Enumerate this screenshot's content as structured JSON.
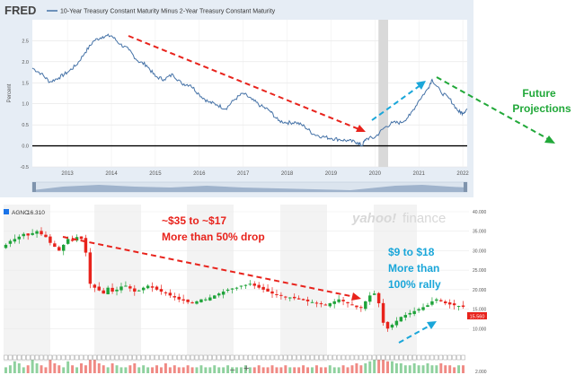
{
  "fred": {
    "logo": "FRED",
    "series_title": "10-Year Treasury Constant Maturity Minus 2-Year Treasury Constant Maturity",
    "ylabel": "Percent",
    "colors": {
      "line": "#4572A7",
      "zero": "#000000",
      "panel": "#e6edf5",
      "recession": "#d9d9d9"
    }
  },
  "yahoo": {
    "ticker": "AGNC",
    "price": "16.310",
    "last_label": "15.560",
    "watermark_brand": "yahoo!",
    "watermark_suffix": "finance",
    "volume_label": "2.000",
    "zoom_minus": "–",
    "zoom_plus": "+"
  },
  "annotations": {
    "future_1": "Future",
    "future_2": "Projections",
    "drop_1": "~$35 to ~$17",
    "drop_2": "More than 50% drop",
    "rally_1": "$9 to $18",
    "rally_2": "More than",
    "rally_3": "100% rally"
  },
  "chart_data": [
    {
      "type": "line",
      "title": "10-Year Treasury Constant Maturity Minus 2-Year Treasury Constant Maturity",
      "ylabel": "Percent",
      "xlabel": "",
      "x_ticks": [
        "2013",
        "2014",
        "2015",
        "2016",
        "2017",
        "2018",
        "2019",
        "2020",
        "2021",
        "2022"
      ],
      "y_ticks": [
        -0.5,
        0.0,
        0.5,
        1.0,
        1.5,
        2.0,
        2.5
      ],
      "xlim": [
        2012.2,
        2022.1
      ],
      "ylim": [
        -0.5,
        3.0
      ],
      "grid": true,
      "recession_band": [
        2020.08,
        2020.3
      ],
      "series": [
        {
          "x": [
            2012.2,
            2012.4,
            2012.6,
            2012.8,
            2013.0,
            2013.2,
            2013.4,
            2013.6,
            2013.8,
            2014.0,
            2014.2,
            2014.4,
            2014.6,
            2014.8,
            2015.0,
            2015.2,
            2015.4,
            2015.6,
            2015.8,
            2016.0,
            2016.2,
            2016.4,
            2016.6,
            2016.8,
            2017.0,
            2017.2,
            2017.4,
            2017.6,
            2017.8,
            2018.0,
            2018.2,
            2018.4,
            2018.6,
            2018.8,
            2019.0,
            2019.2,
            2019.4,
            2019.6,
            2019.7,
            2019.8,
            2020.0,
            2020.2,
            2020.4,
            2020.6,
            2020.8,
            2021.0,
            2021.2,
            2021.3,
            2021.5,
            2021.7,
            2021.9,
            2022.0,
            2022.1
          ],
          "values": [
            1.85,
            1.72,
            1.52,
            1.62,
            1.75,
            1.92,
            2.22,
            2.5,
            2.6,
            2.62,
            2.42,
            2.28,
            2.02,
            1.92,
            1.65,
            1.58,
            1.7,
            1.48,
            1.45,
            1.22,
            1.05,
            0.98,
            0.88,
            1.1,
            1.25,
            1.1,
            0.95,
            0.84,
            0.6,
            0.55,
            0.56,
            0.46,
            0.28,
            0.22,
            0.18,
            0.15,
            0.12,
            0.08,
            0.0,
            0.17,
            0.2,
            0.42,
            0.55,
            0.55,
            0.73,
            1.08,
            1.35,
            1.58,
            1.28,
            1.12,
            0.82,
            0.78,
            0.88
          ]
        }
      ]
    },
    {
      "type": "candlestick",
      "title": "",
      "ylim": [
        5,
        40
      ],
      "y_ticks": [
        10,
        15,
        20,
        25,
        30,
        35,
        40
      ],
      "y_tick_labels": [
        "10.000",
        "15.000",
        "20.000",
        "25.000",
        "30.000",
        "35.000",
        "40.000"
      ],
      "legend": [
        {
          "name": "AGNC",
          "value": "16.310"
        }
      ],
      "series": [
        {
          "name": "AGNC",
          "values": [
            31.5,
            32.5,
            33.0,
            33.6,
            34.3,
            33.9,
            34.5,
            35.0,
            34.2,
            33.5,
            32.0,
            31.0,
            30.0,
            31.5,
            33.0,
            32.5,
            33.5,
            33.0,
            29.5,
            21.5,
            20.5,
            19.8,
            19.0,
            20.5,
            19.5,
            20.0,
            20.8,
            21.0,
            20.3,
            19.5,
            19.8,
            20.5,
            21.0,
            20.5,
            20.0,
            19.5,
            19.2,
            18.5,
            18.0,
            17.5,
            17.2,
            16.8,
            16.5,
            17.0,
            17.5,
            17.5,
            18.0,
            18.5,
            19.0,
            19.5,
            20.0,
            20.3,
            20.5,
            21.0,
            21.2,
            21.5,
            21.0,
            20.5,
            20.0,
            19.5,
            19.0,
            18.8,
            18.5,
            18.2,
            18.0,
            17.8,
            17.5,
            17.3,
            17.0,
            16.8,
            16.5,
            16.3,
            16.0,
            16.5,
            17.0,
            17.5,
            17.0,
            16.5,
            16.0,
            15.5,
            15.3,
            17.0,
            18.5,
            19.0,
            16.5,
            11.5,
            10.0,
            11.0,
            12.0,
            13.0,
            13.5,
            14.0,
            14.5,
            15.0,
            15.5,
            16.0,
            17.0,
            17.5,
            17.0,
            16.5,
            16.2,
            16.0,
            15.8,
            15.6
          ]
        }
      ],
      "volume": [
        3,
        4,
        6,
        5,
        3,
        4,
        7,
        5,
        4,
        3,
        8,
        5,
        4,
        3,
        6,
        4,
        3,
        5,
        4,
        9,
        7,
        5,
        4,
        3,
        5,
        4,
        3,
        3,
        4,
        5,
        3,
        4,
        3,
        3,
        4,
        3,
        5,
        3,
        4,
        3,
        3,
        4,
        3,
        3,
        4,
        3,
        3,
        4,
        3,
        3,
        4,
        3,
        3,
        3,
        4,
        3,
        3,
        4,
        3,
        3,
        4,
        3,
        3,
        4,
        3,
        3,
        3,
        4,
        3,
        3,
        4,
        3,
        3,
        4,
        3,
        3,
        4,
        3,
        4,
        5,
        4,
        5,
        6,
        8,
        9,
        7,
        6,
        6,
        5,
        5,
        4,
        4,
        5,
        4,
        4,
        5,
        4,
        4,
        5,
        4,
        4,
        3,
        4,
        4
      ]
    }
  ]
}
